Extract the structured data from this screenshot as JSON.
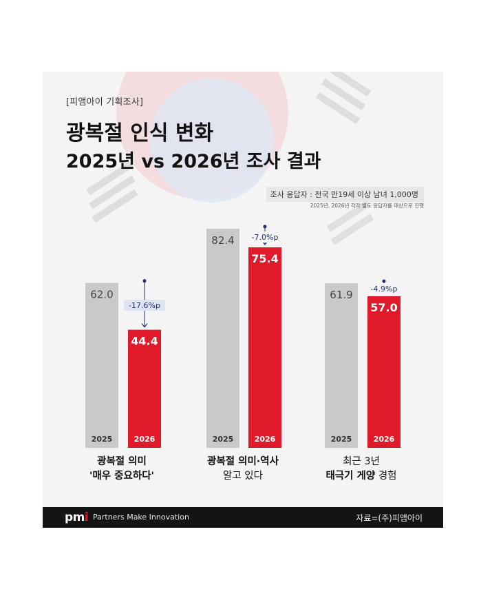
{
  "header": {
    "tag": "[피앰아이 기획조사]",
    "title_line1": "광복절 인식 변화",
    "title_line2": "2025년 vs 2026년 조사 결과"
  },
  "respondents": {
    "label": "조사 응답자 : 전국 만19세 이상 남녀 1,000명",
    "note": "2025년, 2026년 각각 별도 응답자를 대상으로 진행"
  },
  "chart_data": {
    "type": "bar",
    "categories": [
      "광복절 의미 '매우 중요하다'",
      "광복절 의미·역사 알고 있다",
      "최근 3년 태극기 게양 경험"
    ],
    "x_tick_labels": [
      "2025",
      "2026"
    ],
    "series": [
      {
        "name": "2025",
        "values": [
          62.0,
          82.4,
          61.9
        ],
        "labels": [
          "62.0",
          "82.4",
          "61.9"
        ],
        "color": "#c9c9c9"
      },
      {
        "name": "2026",
        "values": [
          44.4,
          75.4,
          57.0
        ],
        "labels": [
          "44.4",
          "75.4",
          "57.0"
        ],
        "color": "#e01a2b"
      }
    ],
    "changes": [
      "-17.6%p",
      "-7.0%p",
      "-4.9%p"
    ],
    "ylim": [
      0,
      100
    ],
    "grid": false,
    "legend": "none",
    "xlabel": "",
    "ylabel": ""
  },
  "group_labels": [
    {
      "line1": "광복절 의미",
      "line2": "'매우 중요하다'"
    },
    {
      "line1": "광복절 의미·역사",
      "line2": "알고 있다"
    },
    {
      "line1": "최근 3년",
      "line2_bold": "태극기 게양",
      "line2_rest": " 경험"
    }
  ],
  "footer": {
    "logo_prefix": "pm",
    "logo_suffix": "i",
    "tagline": "Partners Make Innovation",
    "source": "자료=(주)피앰아이"
  },
  "colors": {
    "bar_2025": "#c9c9c9",
    "bar_2026": "#e01a2b",
    "change_marker": "#1f2f72",
    "footer_bg": "#141414"
  }
}
